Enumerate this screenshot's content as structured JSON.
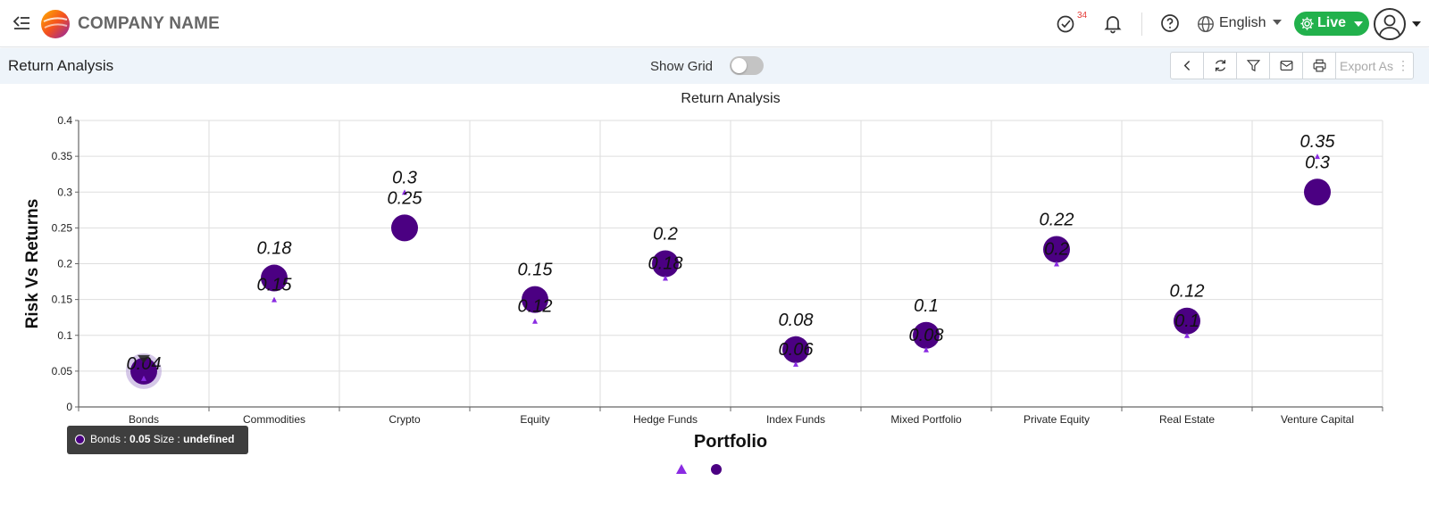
{
  "header": {
    "company_name": "COMPANY NAME",
    "task_badge_count": "34",
    "language": "English",
    "live_label": "Live",
    "icons": [
      "menu-collapse-icon",
      "company-logo",
      "tasks-check-icon",
      "bell-icon",
      "help-icon",
      "globe-icon",
      "gear-icon",
      "user-avatar-icon"
    ]
  },
  "subheader": {
    "page_title": "Return Analysis",
    "show_grid_label": "Show Grid",
    "show_grid_on": false,
    "toolbar": {
      "icons": [
        "chevron-left-icon",
        "refresh-icon",
        "filter-icon",
        "mail-icon",
        "print-icon"
      ],
      "export_label": "Export As",
      "export_more": "⋮"
    }
  },
  "tooltip": {
    "category": "Bonds",
    "value_text": "0.05",
    "size_label": "Size :",
    "size_value": "undefined",
    "separator": " : "
  },
  "colors": {
    "accent_green": "#22b14c",
    "triangle": "#8a2be2",
    "bubble": "#4b0082",
    "badge": "#e53935"
  },
  "chart_data": {
    "type": "scatter",
    "title": "Return Analysis",
    "xlabel": "Portfolio",
    "ylabel": "Risk Vs Returns",
    "categories": [
      "Bonds",
      "Commodities",
      "Crypto",
      "Equity",
      "Hedge Funds",
      "Index Funds",
      "Mixed Portfolio",
      "Private Equity",
      "Real Estate",
      "Venture Capital"
    ],
    "ylim": [
      0,
      0.4
    ],
    "yticks": [
      "0",
      "0.05",
      "0.1",
      "0.15",
      "0.2",
      "0.25",
      "0.3",
      "0.35",
      "0.4"
    ],
    "grid": true,
    "legend": "bottom-center",
    "series": [
      {
        "marker": "triangle",
        "values": [
          0.04,
          0.15,
          0.3,
          0.12,
          0.18,
          0.06,
          0.08,
          0.2,
          0.1,
          0.35
        ],
        "labels": [
          "0.04",
          "0.15",
          "0.3",
          "0.12",
          "0.18",
          "0.06",
          "0.08",
          "0.2",
          "0.1",
          "0.35"
        ]
      },
      {
        "marker": "bubble",
        "values": [
          0.05,
          0.18,
          0.25,
          0.15,
          0.2,
          0.08,
          0.1,
          0.22,
          0.12,
          0.3
        ],
        "labels": [
          "",
          "0.18",
          "0.25",
          "0.15",
          "0.2",
          "0.08",
          "0.1",
          "0.22",
          "0.12",
          "0.3"
        ]
      }
    ],
    "highlighted_category": "Bonds"
  }
}
